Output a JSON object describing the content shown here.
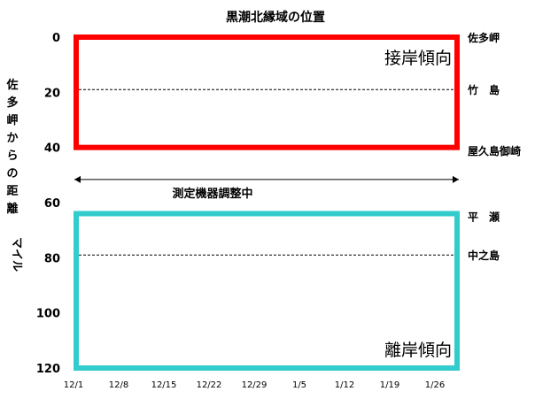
{
  "chart_data": {
    "type": "line",
    "title": "黒潮北縁域の位置",
    "ylabel_chars": [
      "佐",
      "多",
      "岬",
      "か",
      "ら",
      "の",
      "距",
      "離"
    ],
    "yunit": "マイル",
    "ylim": [
      0,
      120
    ],
    "y_inverted": true,
    "y_ticks": [
      0,
      20,
      40,
      60,
      80,
      100,
      120
    ],
    "x_tick_labels": [
      "12/1",
      "12/8",
      "12/15",
      "12/22",
      "12/29",
      "1/5",
      "1/12",
      "1/19",
      "1/26"
    ],
    "x_range": [
      "12/1",
      "1/31"
    ],
    "series": [],
    "reference_places": [
      {
        "label": "佐多岬",
        "y": 0
      },
      {
        "label": "竹　島",
        "y": 19,
        "dashed_line": true
      },
      {
        "label": "屋久島御崎",
        "y": 41
      },
      {
        "label": "平　瀬",
        "y": 65
      },
      {
        "label": "中之島",
        "y": 79,
        "dashed_line": true
      }
    ],
    "zones": [
      {
        "label": "接岸傾向",
        "y_from": 0,
        "y_to": 40,
        "color": "#ff0000"
      },
      {
        "label": "離岸傾向",
        "y_from": 64,
        "y_to": 120,
        "color": "#33cccc"
      }
    ],
    "annotation": {
      "label": "測定機器調整中",
      "y": 50,
      "x_from": "12/1",
      "x_to": "1/31"
    }
  }
}
